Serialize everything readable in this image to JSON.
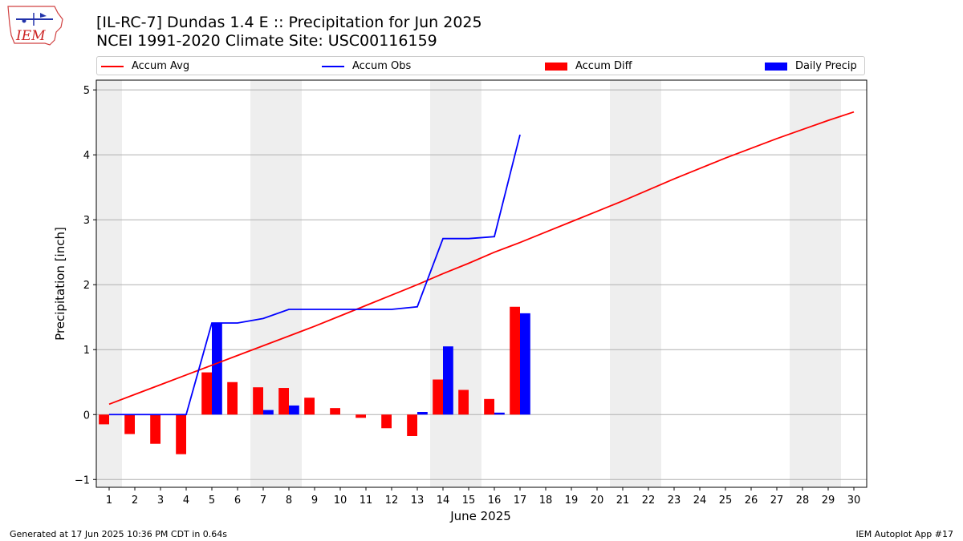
{
  "header": {
    "title_line1": "[IL-RC-7] Dundas 1.4 E :: Precipitation for Jun 2025",
    "title_line2": "NCEI 1991-2020 Climate Site: USC00116159",
    "logo_text": "IEM"
  },
  "footer": {
    "generated": "Generated at 17 Jun 2025 10:36 PM CDT in 0.64s",
    "app": "IEM Autoplot App #17"
  },
  "chart_data": {
    "type": "bar",
    "xlabel": "June 2025",
    "ylabel": "Precipitation [inch]",
    "xlim": [
      0.5,
      30.5
    ],
    "ylim": [
      -1.12,
      5.15
    ],
    "yticks": [
      -1,
      0,
      1,
      2,
      3,
      4,
      5
    ],
    "x": [
      1,
      2,
      3,
      4,
      5,
      6,
      7,
      8,
      9,
      10,
      11,
      12,
      13,
      14,
      15,
      16,
      17,
      18,
      19,
      20,
      21,
      22,
      23,
      24,
      25,
      26,
      27,
      28,
      29,
      30
    ],
    "grid": "horizontal",
    "legend_placement": "top, above plot, 4 columns",
    "weekend_shading": [
      [
        1,
        1
      ],
      [
        7,
        8
      ],
      [
        14,
        15
      ],
      [
        21,
        22
      ],
      [
        28,
        29
      ]
    ],
    "colors": {
      "accum_avg": "#ff0000",
      "accum_obs": "#0000ff",
      "accum_diff": "#ff0000",
      "daily_precip": "#0000ff",
      "weekend_band": "#eeeeee",
      "grid": "#b0b0b0"
    },
    "series": [
      {
        "name": "Accum Avg",
        "kind": "line",
        "color": "#ff0000",
        "x": [
          1,
          2,
          3,
          4,
          5,
          6,
          7,
          8,
          9,
          10,
          11,
          12,
          13,
          14,
          15,
          16,
          17,
          18,
          19,
          20,
          21,
          22,
          23,
          24,
          25,
          26,
          27,
          28,
          29,
          30
        ],
        "values": [
          0.16,
          0.31,
          0.46,
          0.61,
          0.76,
          0.91,
          1.06,
          1.21,
          1.36,
          1.52,
          1.68,
          1.84,
          2.0,
          2.17,
          2.33,
          2.5,
          2.65,
          2.81,
          2.97,
          3.13,
          3.29,
          3.46,
          3.63,
          3.79,
          3.95,
          4.1,
          4.25,
          4.39,
          4.53,
          4.66
        ]
      },
      {
        "name": "Accum Obs",
        "kind": "line",
        "color": "#0000ff",
        "x": [
          1,
          2,
          3,
          4,
          5,
          6,
          7,
          8,
          9,
          10,
          11,
          12,
          13,
          14,
          15,
          16,
          17
        ],
        "values": [
          0.0,
          0.0,
          0.0,
          0.0,
          1.41,
          1.41,
          1.48,
          1.62,
          1.62,
          1.62,
          1.62,
          1.62,
          1.66,
          2.71,
          2.71,
          2.74,
          4.31
        ]
      },
      {
        "name": "Accum Diff",
        "kind": "bar",
        "color": "#ff0000",
        "x": [
          1,
          2,
          3,
          4,
          5,
          6,
          7,
          8,
          9,
          10,
          11,
          12,
          13,
          14,
          15,
          16,
          17
        ],
        "values": [
          -0.15,
          -0.3,
          -0.45,
          -0.61,
          0.65,
          0.5,
          0.42,
          0.41,
          0.26,
          0.1,
          -0.05,
          -0.21,
          -0.33,
          0.54,
          0.38,
          0.24,
          1.66
        ]
      },
      {
        "name": "Daily Precip",
        "kind": "bar",
        "color": "#0000ff",
        "x": [
          1,
          2,
          3,
          4,
          5,
          6,
          7,
          8,
          9,
          10,
          11,
          12,
          13,
          14,
          15,
          16,
          17
        ],
        "values": [
          0,
          0,
          0,
          0,
          1.41,
          0,
          0.07,
          0.14,
          0,
          0,
          0,
          0,
          0.04,
          1.05,
          0,
          0.03,
          1.56
        ]
      }
    ]
  }
}
